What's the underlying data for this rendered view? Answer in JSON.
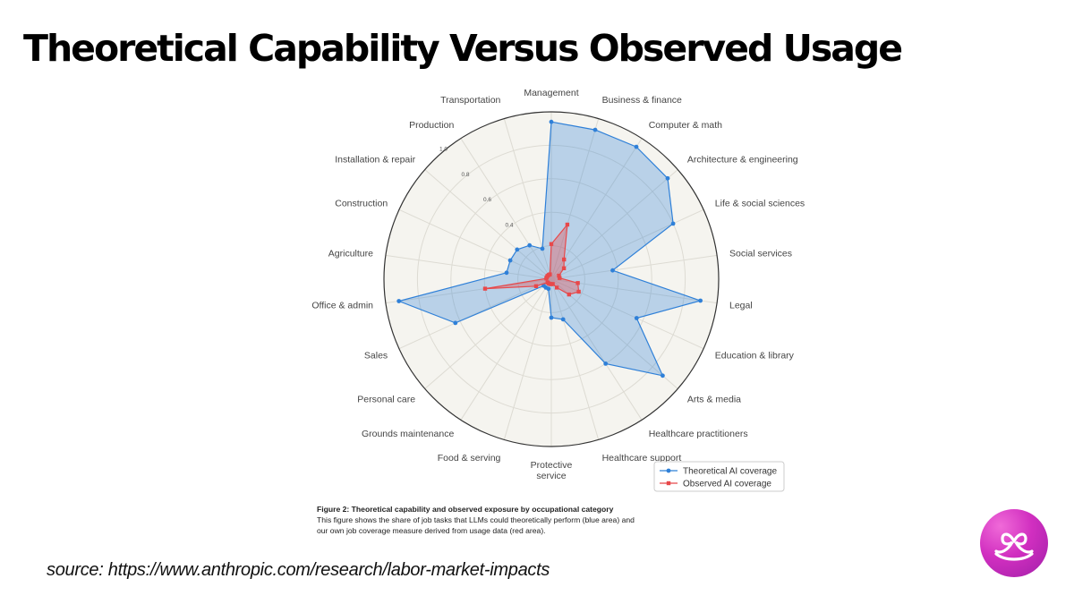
{
  "slide": {
    "title": "Theoretical Capability Versus Observed Usage",
    "source": "source: https://www.anthropic.com/research/labor-market-impacts"
  },
  "caption": {
    "title": "Figure 2: Theoretical capability and observed exposure by occupational category",
    "text": "This figure shows the share of job tasks that LLMs could theoretically perform (blue area) and our own job coverage measure derived from usage data (red area)."
  },
  "logo": {
    "icon": "loop-heart-logo"
  },
  "chart_data": {
    "type": "radar",
    "title": "",
    "rlim": [
      0,
      1
    ],
    "ticks": [
      {
        "value": 0.4,
        "label": "0.4"
      },
      {
        "value": 0.6,
        "label": "0.6"
      },
      {
        "value": 0.8,
        "label": "0.8"
      },
      {
        "value": 1.0,
        "label": "1.0"
      }
    ],
    "grid": true,
    "legend": "bottom-right",
    "categories": [
      "Management",
      "Business & finance",
      "Computer & math",
      "Architecture & engineering",
      "Life & social sciences",
      "Social services",
      "Legal",
      "Education & library",
      "Arts & media",
      "Healthcare practitioners",
      "Healthcare support",
      "Protective\nservice",
      "Food & serving",
      "Grounds maintenance",
      "Personal care",
      "Sales",
      "Office & admin",
      "Agriculture",
      "Construction",
      "Installation & repair",
      "Production",
      "Transportation"
    ],
    "series": [
      {
        "name": "Theoretical AI coverage",
        "color": "#2f80d8",
        "fill": "rgba(47,128,216,0.30)",
        "marker": "circle",
        "values": [
          0.94,
          0.93,
          0.94,
          0.92,
          0.8,
          0.37,
          0.9,
          0.56,
          0.88,
          0.6,
          0.25,
          0.23,
          0.06,
          0.06,
          0.06,
          0.63,
          0.92,
          0.27,
          0.27,
          0.27,
          0.24,
          0.19
        ]
      },
      {
        "name": "Observed AI coverage",
        "color": "#e8484a",
        "fill": "rgba(232,72,74,0.35)",
        "marker": "square",
        "values": [
          0.21,
          0.34,
          0.14,
          0.1,
          0.05,
          0.05,
          0.16,
          0.18,
          0.14,
          0.06,
          0.03,
          0.03,
          0.03,
          0.03,
          0.03,
          0.1,
          0.4,
          0.03,
          0.03,
          0.03,
          0.03,
          0.03
        ]
      }
    ]
  }
}
